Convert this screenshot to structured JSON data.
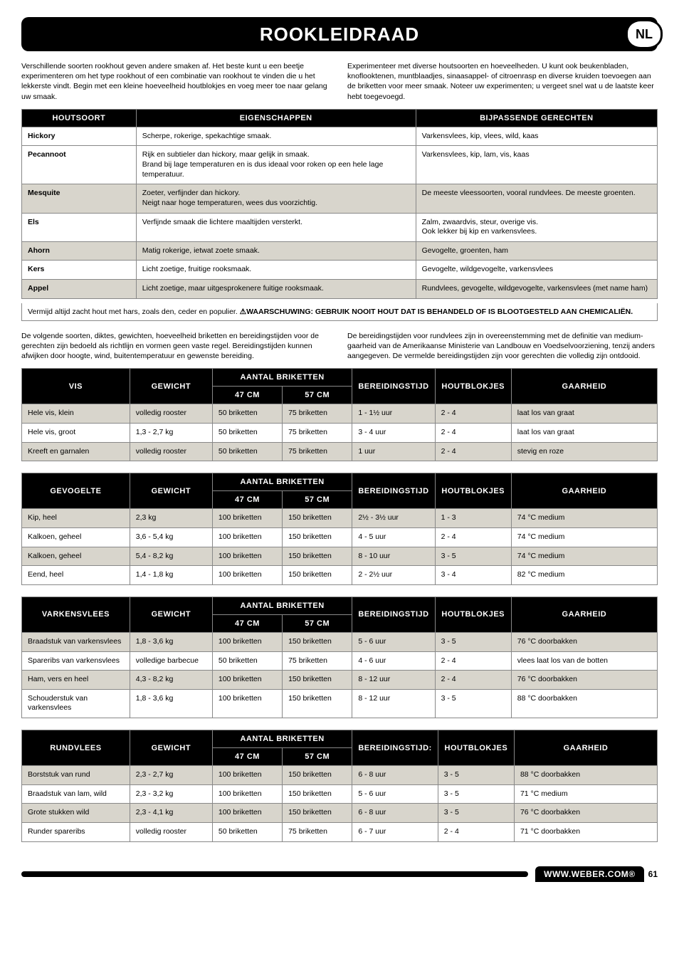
{
  "page": {
    "title": "ROOKLEIDRAAD",
    "lang_badge": "NL",
    "footer_url": "WWW.WEBER.COM®",
    "footer_page": "61"
  },
  "intro": {
    "left": "Verschillende soorten rookhout geven andere smaken af. Het beste kunt u een beetje experimenteren om het type rookhout of een combinatie van rookhout te vinden die u het lekkerste vindt. Begin met een kleine hoeveelheid houtblokjes en voeg meer toe naar gelang uw smaak.",
    "right": "Experimenteer met diverse houtsoorten en hoeveelheden. U kunt ook beukenbladen, knoflooktenen, muntblaadjes, sinaasappel- of citroenrasp en diverse kruiden toevoegen aan de briketten voor meer smaak. Noteer uw experimenten; u vergeet snel wat u de laatste keer hebt toegevoegd."
  },
  "wood_table": {
    "headers": {
      "soort": "HOUTSOORT",
      "eigen": "EIGENSCHAPPEN",
      "gerecht": "BIJPASSENDE GERECHTEN"
    },
    "rows": [
      {
        "s": "Hickory",
        "e": "Scherpe, rokerige, spekachtige smaak.",
        "g": "Varkensvlees, kip, vlees, wild, kaas",
        "shade": false
      },
      {
        "s": "Pecannoot",
        "e": "Rijk en subtieler dan hickory, maar gelijk in smaak.\nBrand bij lage temperaturen en is dus ideaal voor roken op een hele lage temperatuur.",
        "g": "Varkensvlees, kip, lam, vis, kaas",
        "shade": false
      },
      {
        "s": "Mesquite",
        "e": "Zoeter, verfijnder dan hickory.\nNeigt naar hoge temperaturen, wees dus voorzichtig.",
        "g": "De meeste vleessoorten, vooral rundvlees. De meeste groenten.",
        "shade": true
      },
      {
        "s": "Els",
        "e": "Verfijnde smaak die lichtere maaltijden versterkt.",
        "g": "Zalm, zwaardvis, steur, overige vis.\nOok lekker bij kip en varkensvlees.",
        "shade": false
      },
      {
        "s": "Ahorn",
        "e": "Matig rokerige, ietwat zoete smaak.",
        "g": "Gevogelte, groenten, ham",
        "shade": true
      },
      {
        "s": "Kers",
        "e": "Licht zoetige, fruitige rooksmaak.",
        "g": "Gevogelte, wildgevogelte, varkensvlees",
        "shade": false
      },
      {
        "s": "Appel",
        "e": "Licht zoetige, maar uitgesprokenere fuitige rooksmaak.",
        "g": "Rundvlees, gevogelte, wildgevogelte, varkensvlees (met name ham)",
        "shade": true
      }
    ],
    "note_prefix": "Vermijd altijd zacht hout met hars, zoals den, ceder en populier. ",
    "note_warning": "⚠WAARSCHUWING: GEBRUIK NOOIT HOUT DAT IS BEHANDELD OF IS BLOOTGESTELD AAN CHEMICALIËN."
  },
  "mid_intro": {
    "left": "De volgende soorten, diktes, gewichten, hoeveelheid briketten en bereidingstijden voor de gerechten zijn bedoeld als richtlijn en vormen geen vaste regel. Bereidingstijden kunnen afwijken door hoogte, wind, buitentemperatuur en gewenste bereiding.",
    "right": "De bereidingstijden voor rundvlees zijn in overeenstemming met de definitie van medium-gaarheid van de Amerikaanse Ministerie van Landbouw en Voedselvoorziening, tenzij anders aangegeven. De vermelde bereidingstijden zijn voor gerechten die volledig zijn ontdooid."
  },
  "col_headers": {
    "gewicht": "GEWICHT",
    "aantal": "AANTAL BRIKETTEN",
    "c47": "47 CM",
    "c57": "57 CM",
    "tijd": "BEREIDINGSTIJD",
    "tijd2": "BEREIDINGSTIJD:",
    "hout": "HOUTBLOKJES",
    "gaar": "GAARHEID"
  },
  "sections": [
    {
      "title": "VIS",
      "tijd_key": "tijd",
      "rows": [
        {
          "a": "Hele vis, klein",
          "b": "volledig rooster",
          "c": "50 briketten",
          "d": "75 briketten",
          "e": "1 - 1½ uur",
          "f": "2 - 4",
          "g": "laat los van graat",
          "shade": true
        },
        {
          "a": "Hele vis, groot",
          "b": "1,3 - 2,7 kg",
          "c": "50 briketten",
          "d": "75 briketten",
          "e": "3 - 4 uur",
          "f": "2 - 4",
          "g": "laat los van graat",
          "shade": false
        },
        {
          "a": "Kreeft en garnalen",
          "b": "volledig rooster",
          "c": "50 briketten",
          "d": "75 briketten",
          "e": "1 uur",
          "f": "2 - 4",
          "g": "stevig en roze",
          "shade": true
        }
      ]
    },
    {
      "title": "GEVOGELTE",
      "tijd_key": "tijd",
      "rows": [
        {
          "a": "Kip, heel",
          "b": "2,3 kg",
          "c": "100 briketten",
          "d": "150 briketten",
          "e": "2½ - 3½ uur",
          "f": "1 - 3",
          "g": "74 °C medium",
          "shade": true
        },
        {
          "a": "Kalkoen, geheel",
          "b": "3,6 - 5,4 kg",
          "c": "100 briketten",
          "d": "150 briketten",
          "e": "4 - 5 uur",
          "f": "2 - 4",
          "g": "74 °C medium",
          "shade": false
        },
        {
          "a": "Kalkoen, geheel",
          "b": "5,4 - 8,2 kg",
          "c": "100 briketten",
          "d": "150 briketten",
          "e": "8 - 10 uur",
          "f": "3 - 5",
          "g": "74 °C medium",
          "shade": true
        },
        {
          "a": "Eend, heel",
          "b": "1,4 - 1,8 kg",
          "c": "100 briketten",
          "d": "150 briketten",
          "e": "2 - 2½ uur",
          "f": "3 - 4",
          "g": "82 °C medium",
          "shade": false
        }
      ]
    },
    {
      "title": "VARKENSVLEES",
      "tijd_key": "tijd",
      "rows": [
        {
          "a": "Braadstuk van varkensvlees",
          "b": "1,8 - 3,6 kg",
          "c": "100 briketten",
          "d": "150 briketten",
          "e": "5 - 6 uur",
          "f": "3 - 5",
          "g": "76 °C doorbakken",
          "shade": true
        },
        {
          "a": "Spareribs van varkensvlees",
          "b": "volledige barbecue",
          "c": "50 briketten",
          "d": "75 briketten",
          "e": "4 - 6 uur",
          "f": "2 - 4",
          "g": "vlees laat los van de botten",
          "shade": false
        },
        {
          "a": "Ham, vers en heel",
          "b": "4,3 - 8,2 kg",
          "c": "100 briketten",
          "d": "150 briketten",
          "e": "8 - 12 uur",
          "f": "2 - 4",
          "g": "76 °C doorbakken",
          "shade": true
        },
        {
          "a": "Schouderstuk van varkensvlees",
          "b": "1,8 - 3,6 kg",
          "c": "100 briketten",
          "d": "150 briketten",
          "e": "8 - 12 uur",
          "f": "3 - 5",
          "g": "88 °C doorbakken",
          "shade": false
        }
      ]
    },
    {
      "title": "RUNDVLEES",
      "tijd_key": "tijd2",
      "rows": [
        {
          "a": "Borststuk van rund",
          "b": "2,3 - 2,7 kg",
          "c": "100 briketten",
          "d": "150 briketten",
          "e": "6 - 8 uur",
          "f": "3 - 5",
          "g": "88 °C doorbakken",
          "shade": true
        },
        {
          "a": "Braadstuk van lam, wild",
          "b": "2,3 - 3,2 kg",
          "c": "100 briketten",
          "d": "150 briketten",
          "e": "5 - 6 uur",
          "f": "3 - 5",
          "g": "71 °C medium",
          "shade": false
        },
        {
          "a": "Grote stukken wild",
          "b": "2,3 - 4,1 kg",
          "c": "100 briketten",
          "d": "150 briketten",
          "e": "6 - 8 uur",
          "f": "3 - 5",
          "g": "76 °C doorbakken",
          "shade": true
        },
        {
          "a": "Runder spareribs",
          "b": "volledig rooster",
          "c": "50 briketten",
          "d": "75 briketten",
          "e": "6 - 7 uur",
          "f": "2 - 4",
          "g": "71 °C doorbakken",
          "shade": false
        }
      ]
    }
  ]
}
